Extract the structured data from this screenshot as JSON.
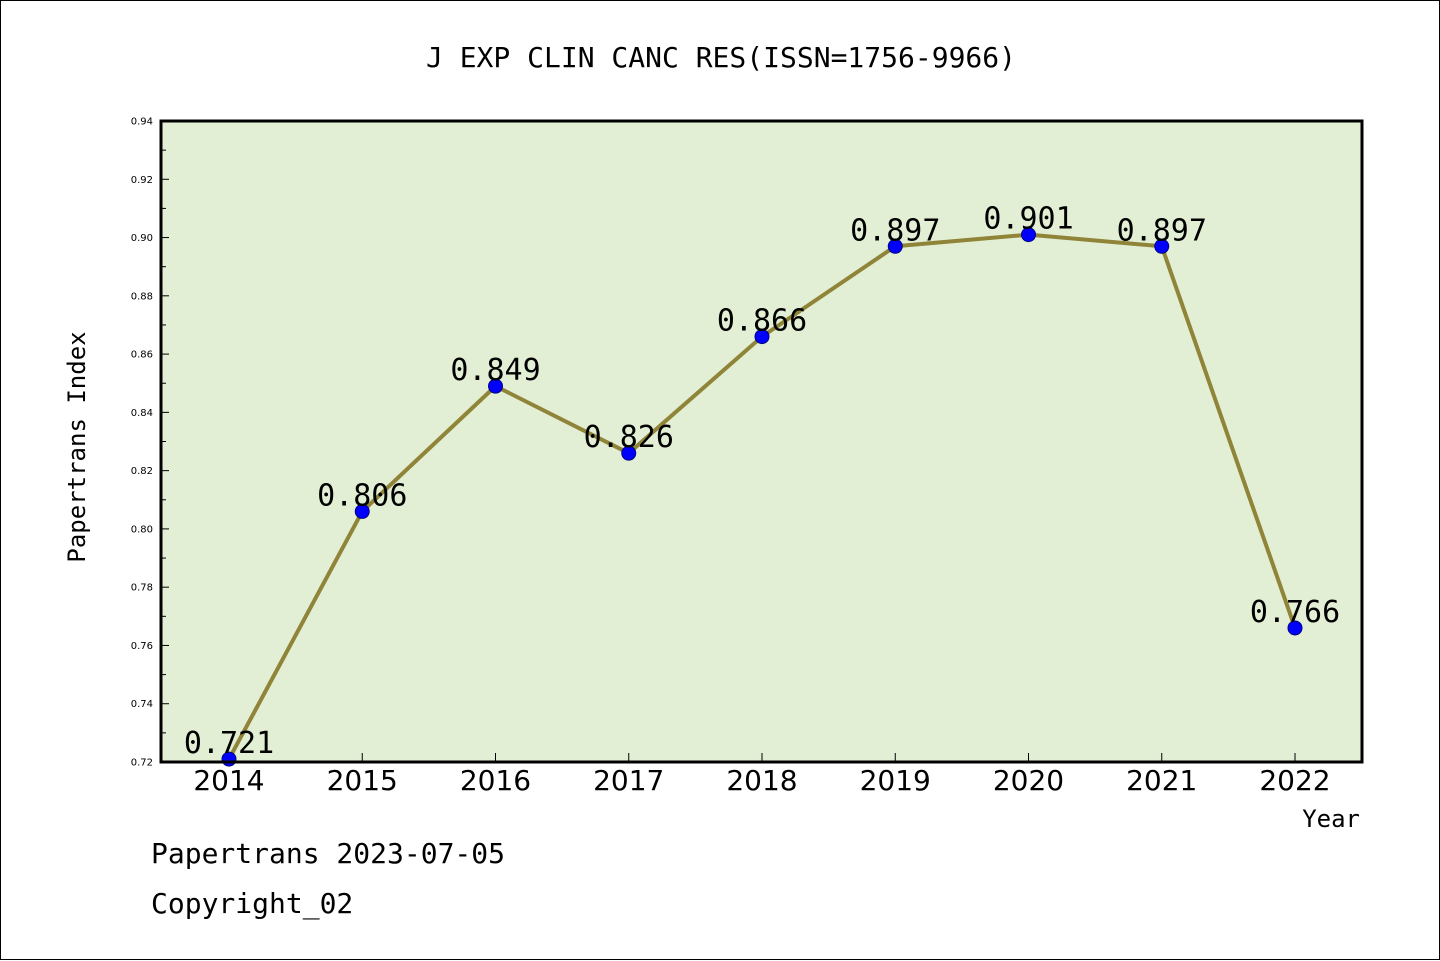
{
  "chart_data": {
    "type": "line",
    "title": "J EXP CLIN CANC RES(ISSN=1756-9966)",
    "xlabel": "Year",
    "ylabel": "Papertrans Index",
    "categories": [
      "2014",
      "2015",
      "2016",
      "2017",
      "2018",
      "2019",
      "2020",
      "2021",
      "2022"
    ],
    "values": [
      0.721,
      0.806,
      0.849,
      0.826,
      0.866,
      0.897,
      0.901,
      0.897,
      0.766
    ],
    "value_labels": [
      "0.721",
      "0.806",
      "0.849",
      "0.826",
      "0.866",
      "0.897",
      "0.901",
      "0.897",
      "0.766"
    ],
    "ylim": [
      0.72,
      0.94
    ],
    "yticks": [
      "0.72",
      "0.74",
      "0.76",
      "0.78",
      "0.80",
      "0.82",
      "0.84",
      "0.86",
      "0.88",
      "0.90",
      "0.92",
      "0.94"
    ],
    "grid": false,
    "legend": "none",
    "colors": {
      "plot_background": "#e2efd4",
      "line": "#8f8438",
      "marker": "#0000ff",
      "axes": "#000000"
    }
  },
  "footer": {
    "line1": "Papertrans 2023-07-05",
    "line2": "Copyright_02"
  }
}
